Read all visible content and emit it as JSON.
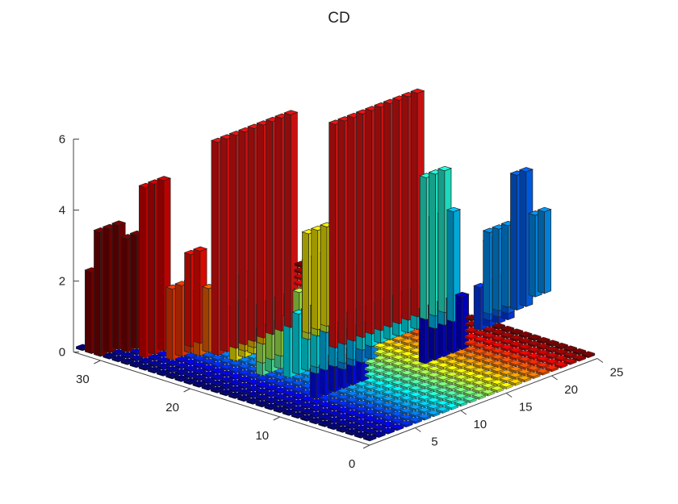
{
  "chart_data": {
    "type": "bar3",
    "title": "CD",
    "x_ticks": [
      "5",
      "10",
      "15",
      "20",
      "25"
    ],
    "y_ticks": [
      "0",
      "10",
      "20",
      "30"
    ],
    "z_ticks": [
      "0",
      "2",
      "4",
      "6"
    ],
    "x_range": [
      0,
      25
    ],
    "y_range": [
      0,
      33
    ],
    "z_range": [
      0,
      6
    ],
    "colormap": "jet",
    "base_grid_colored_by": "x",
    "bars": [
      {
        "x": 14,
        "y_from": 27,
        "y_to": 33,
        "z": 2.3
      },
      {
        "x": 13,
        "y_from": 29,
        "y_to": 30,
        "z": 3.8
      },
      {
        "x": 13,
        "y_from": 26,
        "y_to": 28,
        "z": 2.2
      },
      {
        "x": 12,
        "y_from": 24,
        "y_to": 27,
        "z": 1.2
      },
      {
        "x": 17,
        "y_from": 23,
        "y_to": 25,
        "z": 4.0
      },
      {
        "x": 15,
        "y_from": 22,
        "y_to": 24,
        "z": 3.1
      },
      {
        "x": 18,
        "y_from": 14,
        "y_to": 23,
        "z": 6.3
      },
      {
        "x": 24,
        "y_from": 22,
        "y_to": 24,
        "z": 5.0
      },
      {
        "x": 25,
        "y_from": 23,
        "y_to": 25,
        "z": 4.4
      },
      {
        "x": 23,
        "y_from": 18,
        "y_to": 22,
        "z": 2.6
      },
      {
        "x": 20,
        "y_from": 20,
        "y_to": 23,
        "z": 1.4
      },
      {
        "x": 16,
        "y_from": 14,
        "y_to": 22,
        "z": 1.1
      },
      {
        "x": 11,
        "y_from": 18,
        "y_to": 21,
        "z": 1.3
      },
      {
        "x": 10,
        "y_from": 16,
        "y_to": 20,
        "z": 1.5
      },
      {
        "x": 21,
        "y_from": 14,
        "y_to": 18,
        "z": 2.2
      },
      {
        "x": 22,
        "y_from": 15,
        "y_to": 17,
        "z": 2.8
      },
      {
        "x": 19,
        "y_from": 16,
        "y_to": 18,
        "z": 1.8
      },
      {
        "x": 24,
        "y_from": 7,
        "y_to": 15,
        "z": 6.0
      },
      {
        "x": 23,
        "y_from": 9,
        "y_to": 11,
        "z": 2.1
      },
      {
        "x": 22,
        "y_from": 7,
        "y_to": 9,
        "z": 1.5
      },
      {
        "x": 20,
        "y_from": 8,
        "y_to": 12,
        "z": 1.6
      },
      {
        "x": 15,
        "y_from": 9,
        "y_to": 13,
        "z": 1.1
      },
      {
        "x": 14,
        "y_from": 11,
        "y_to": 14,
        "z": 1.0
      },
      {
        "x": 16,
        "y_from": 7,
        "y_to": 10,
        "z": 1.7
      },
      {
        "x": 18,
        "y_from": 6,
        "y_to": 9,
        "z": 1.3
      },
      {
        "x": 12,
        "y_from": 8,
        "y_to": 11,
        "z": 0.8
      },
      {
        "x": 25,
        "y_from": 6,
        "y_to": 7,
        "z": 1.8
      },
      {
        "x": 11,
        "y_from": 5,
        "y_to": 10,
        "z": 0.8
      },
      {
        "x": 27,
        "y_from": 7,
        "y_to": 8,
        "z": 2.6
      },
      {
        "x": 26,
        "y_from": 4,
        "y_to": 6,
        "z": 2.0
      },
      {
        "x": 28,
        "y_from": 3,
        "y_to": 5,
        "z": 4.8
      },
      {
        "x": 30,
        "y_from": 3,
        "y_to": 6,
        "z": 3.2
      },
      {
        "x": 31,
        "y_from": 1,
        "y_to": 3,
        "z": 3.5
      },
      {
        "x": 32,
        "y_from": 1,
        "y_to": 2,
        "z": 2.3
      }
    ]
  }
}
